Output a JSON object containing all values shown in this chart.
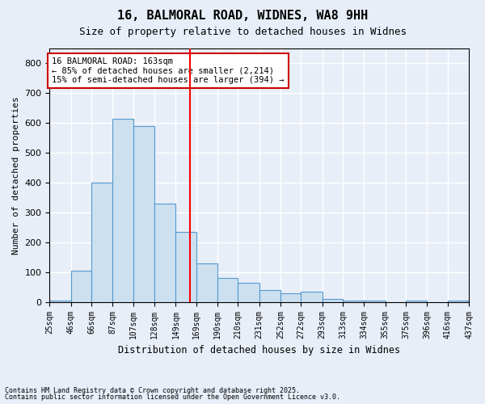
{
  "title1": "16, BALMORAL ROAD, WIDNES, WA8 9HH",
  "title2": "Size of property relative to detached houses in Widnes",
  "xlabel": "Distribution of detached houses by size in Widnes",
  "ylabel": "Number of detached properties",
  "bar_color": "#cce0f0",
  "bar_edge_color": "#5599cc",
  "background_color": "#e8eef8",
  "grid_color": "#ffffff",
  "red_line_x": 163,
  "annotation_text": "16 BALMORAL ROAD: 163sqm\n← 85% of detached houses are smaller (2,214)\n15% of semi-detached houses are larger (394) →",
  "annotation_box_color": "#ffffff",
  "annotation_box_edge": "#cc0000",
  "bin_edges": [
    25,
    46,
    66,
    87,
    107,
    128,
    149,
    169,
    190,
    210,
    231,
    252,
    272,
    293,
    313,
    334,
    355,
    375,
    396,
    416,
    437
  ],
  "counts": [
    5,
    105,
    400,
    615,
    590,
    330,
    235,
    130,
    80,
    65,
    40,
    30,
    35,
    10,
    5,
    5,
    0,
    5,
    0,
    5
  ],
  "ylim": [
    0,
    850
  ],
  "yticks": [
    0,
    100,
    200,
    300,
    400,
    500,
    600,
    700,
    800
  ],
  "footnote1": "Contains HM Land Registry data © Crown copyright and database right 2025.",
  "footnote2": "Contains public sector information licensed under the Open Government Licence v3.0."
}
